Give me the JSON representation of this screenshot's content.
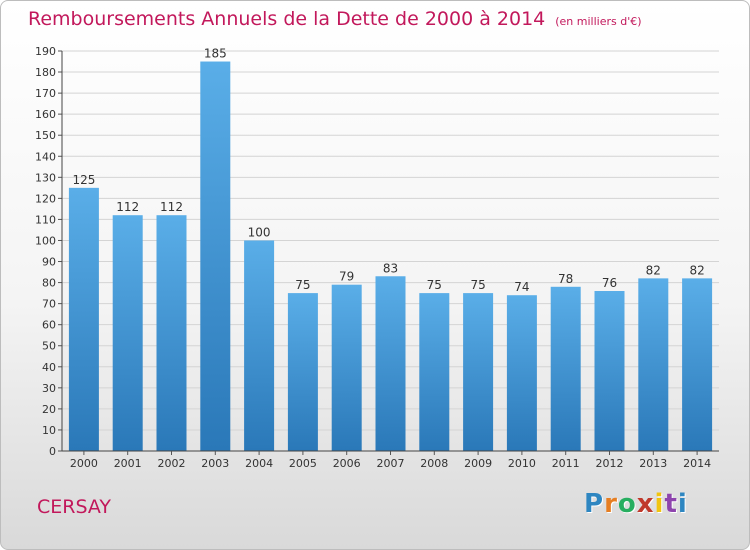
{
  "chart_data": {
    "type": "bar",
    "title": "Remboursements Annuels de la Dette de 2000 à 2014",
    "subtitle": "(en milliers d'€)",
    "categories": [
      "2000",
      "2001",
      "2002",
      "2003",
      "2004",
      "2005",
      "2006",
      "2007",
      "2008",
      "2009",
      "2010",
      "2011",
      "2012",
      "2013",
      "2014"
    ],
    "values": [
      125,
      112,
      112,
      185,
      100,
      75,
      79,
      83,
      75,
      75,
      74,
      78,
      76,
      82,
      82
    ],
    "ylim": [
      0,
      190
    ],
    "ytick_step": 10,
    "grid": true,
    "bar_color_top": "#5aaee8",
    "bar_color_bottom": "#2a78b8"
  },
  "footer": {
    "town": "CERSAY"
  },
  "brand": {
    "letters": [
      "P",
      "r",
      "o",
      "x",
      "i",
      "t",
      "i"
    ],
    "colors": [
      "#2e86c1",
      "#e67e22",
      "#27ae60",
      "#c0392b",
      "#f1c40f",
      "#8e44ad",
      "#2e86c1"
    ]
  }
}
